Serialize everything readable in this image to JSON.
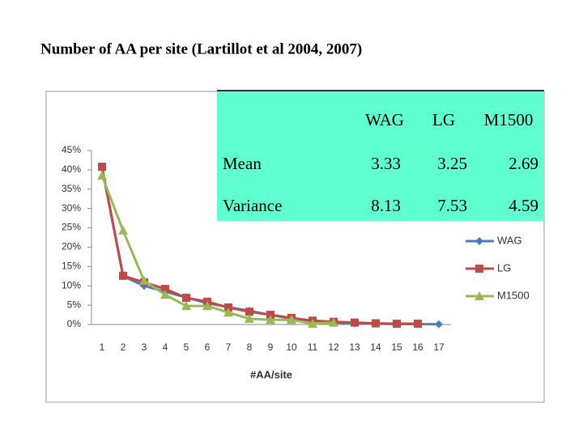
{
  "title": "Number of AA per site (Lartillot et al 2004, 2007)",
  "table": {
    "columns": [
      "WAG",
      "LG",
      "M1500"
    ],
    "rows": [
      {
        "label": "Mean",
        "values": [
          3.33,
          3.25,
          2.69
        ]
      },
      {
        "label": "Variance",
        "values": [
          8.13,
          7.53,
          4.59
        ]
      }
    ]
  },
  "chart_data": {
    "type": "line",
    "x_label": "#AA/site",
    "categories": [
      "1",
      "2",
      "3",
      "4",
      "5",
      "6",
      "7",
      "8",
      "9",
      "10",
      "11",
      "12",
      "13",
      "14",
      "15",
      "16",
      "17"
    ],
    "series": [
      {
        "name": "WAG",
        "color": "#4a7ebb",
        "marker": "diamond",
        "values": [
          40.5,
          12.5,
          10,
          8.5,
          7,
          5.5,
          4.5,
          3.5,
          2.5,
          1.5,
          1,
          0.5,
          0.3,
          0.2,
          0.1,
          0.1,
          0.05
        ]
      },
      {
        "name": "LG",
        "color": "#be4b48",
        "marker": "square",
        "values": [
          40.8,
          12.6,
          10.9,
          9.2,
          6.9,
          5.9,
          4.4,
          3.3,
          2.5,
          1.7,
          1,
          0.7,
          0.5,
          0.3,
          0.2,
          0.2,
          null
        ]
      },
      {
        "name": "M1500",
        "color": "#98b954",
        "marker": "triangle",
        "values": [
          38.5,
          24.3,
          11.3,
          7.7,
          4.8,
          4.8,
          3.1,
          1.5,
          1.2,
          1.2,
          0.2,
          0.5,
          null,
          null,
          null,
          null,
          null
        ]
      }
    ],
    "ylim": [
      0,
      45
    ],
    "yticks": [
      {
        "value": 0,
        "label": "0%"
      },
      {
        "value": 5,
        "label": "5%"
      },
      {
        "value": 10,
        "label": "10%"
      },
      {
        "value": 15,
        "label": "15%"
      },
      {
        "value": 20,
        "label": "20%"
      },
      {
        "value": 25,
        "label": "25%"
      },
      {
        "value": 30,
        "label": "30%"
      },
      {
        "value": 35,
        "label": "35%"
      },
      {
        "value": 40,
        "label": "40%"
      },
      {
        "value": 45,
        "label": "45%"
      }
    ],
    "legend": "right"
  }
}
